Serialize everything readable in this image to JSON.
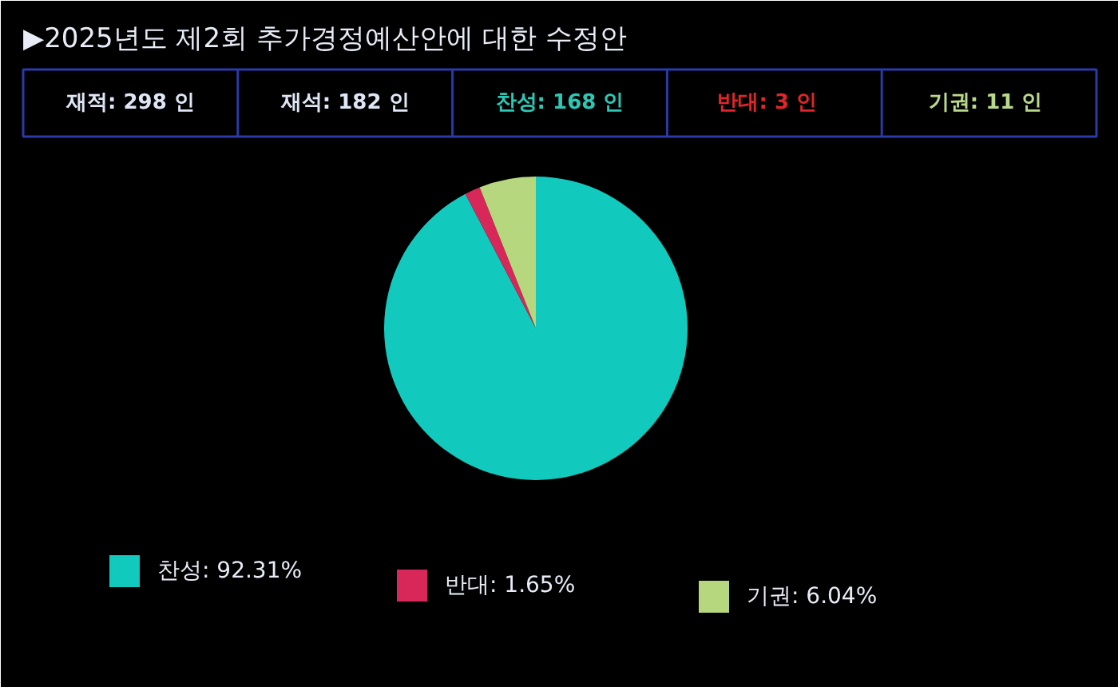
{
  "chart_data": {
    "type": "pie",
    "title": "▶2025년도 제2회 추가경정예산안에 대한 수정안",
    "annotations": [
      "재적: 298 인",
      "재석: 182 인",
      "찬성: 168 인",
      "반대:   3 인",
      "기권:  11 인"
    ],
    "categories": [
      "찬성",
      "반대",
      "기권"
    ],
    "values": [
      92.31,
      1.65,
      6.04
    ],
    "value_labels": [
      "92.31%",
      "1.65%",
      "6.04%"
    ],
    "colors": [
      "#12c9bd",
      "#d8285a",
      "#b7d77f"
    ],
    "legend": "bottom"
  }
}
